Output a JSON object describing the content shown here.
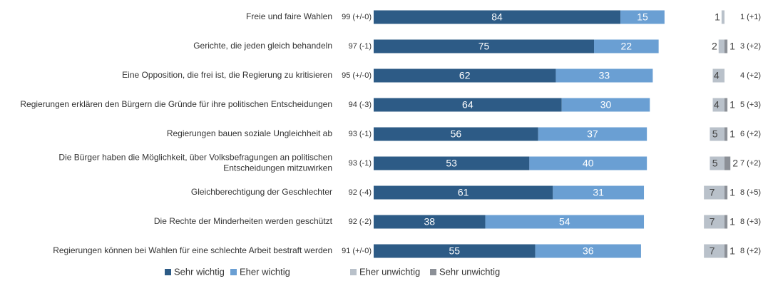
{
  "chart_data": {
    "type": "bar",
    "orientation": "horizontal",
    "stacked": true,
    "categories": [
      "Freie und faire Wahlen",
      "Gerichte, die jeden gleich behandeln",
      "Eine Opposition, die frei ist, die Regierung zu kritisieren",
      "Regierungen erklären den Bürgern die Gründe für ihre politischen Entscheidungen",
      "Regierungen bauen soziale Ungleichheit ab",
      "Die Bürger haben die Möglichkeit, über Volksbefragungen an politischen Entscheidungen mitzuwirken",
      "Gleichberechtigung der Geschlechter",
      "Die Rechte der Minderheiten werden geschützt",
      "Regierungen können bei Wahlen für eine schlechte Arbeit bestraft werden"
    ],
    "series": [
      {
        "name": "Sehr wichtig",
        "color": "#2d5b86",
        "values": [
          84,
          75,
          62,
          64,
          56,
          53,
          61,
          38,
          55
        ]
      },
      {
        "name": "Eher wichtig",
        "color": "#6a9fd3",
        "values": [
          15,
          22,
          33,
          30,
          37,
          40,
          31,
          54,
          36
        ]
      },
      {
        "name": "Eher unwichtig",
        "color": "#b9c1ca",
        "values": [
          1,
          2,
          4,
          4,
          5,
          5,
          7,
          7,
          7
        ]
      },
      {
        "name": "Sehr unwichtig",
        "color": "#8c9097",
        "values": [
          null,
          1,
          null,
          1,
          1,
          2,
          1,
          1,
          1
        ]
      }
    ],
    "totals_important": [
      "99 (+/-0)",
      "97 (-1)",
      "95 (+/-0)",
      "94 (-3)",
      "93 (-1)",
      "93 (-1)",
      "92 (-4)",
      "92 (-2)",
      "91 (+/-0)"
    ],
    "totals_unimportant": [
      "1 (+1)",
      "3 (+2)",
      "4 (+2)",
      "5 (+3)",
      "6 (+2)",
      "7 (+2)",
      "8 (+5)",
      "8 (+3)",
      "8 (+2)"
    ]
  }
}
